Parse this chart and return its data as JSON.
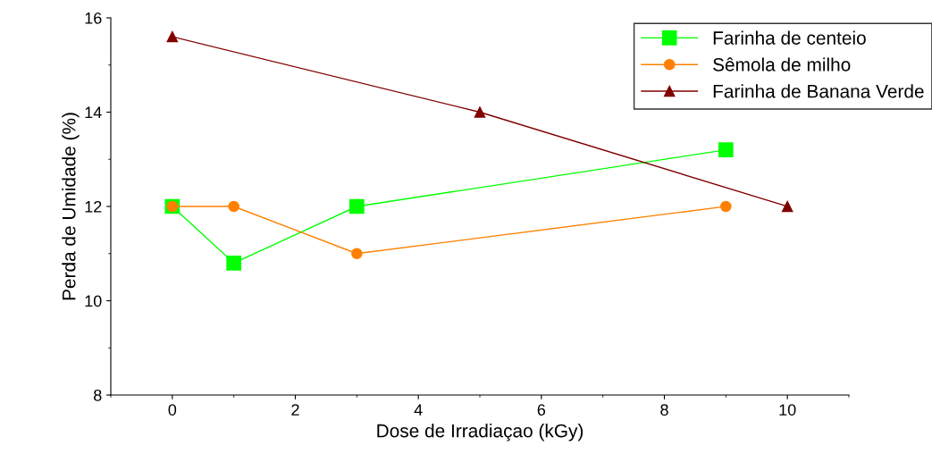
{
  "chart_data": {
    "type": "line",
    "xlabel": "Dose de Irradiaçao (kGy)",
    "ylabel": "Perda de Umidade (%)",
    "xlim": [
      -1,
      11
    ],
    "xticks": [
      0,
      2,
      4,
      6,
      8,
      10
    ],
    "ylim": [
      8,
      16
    ],
    "yticks": [
      8,
      10,
      12,
      14,
      16
    ],
    "legend": "top right",
    "grid": false,
    "series": [
      {
        "name": "Farinha de centeio",
        "color": "#00ff00",
        "marker": "square",
        "x": [
          0,
          1,
          3,
          9
        ],
        "values": [
          12,
          10.8,
          12,
          13.2
        ]
      },
      {
        "name": "Sêmola de milho",
        "color": "#ff8000",
        "marker": "circle",
        "x": [
          0,
          1,
          3,
          9
        ],
        "values": [
          12,
          12,
          11,
          12
        ]
      },
      {
        "name": "Farinha de Banana Verde",
        "color": "#800000",
        "marker": "triangle",
        "x": [
          0,
          5,
          10
        ],
        "values": [
          15.6,
          14,
          12
        ]
      }
    ]
  }
}
